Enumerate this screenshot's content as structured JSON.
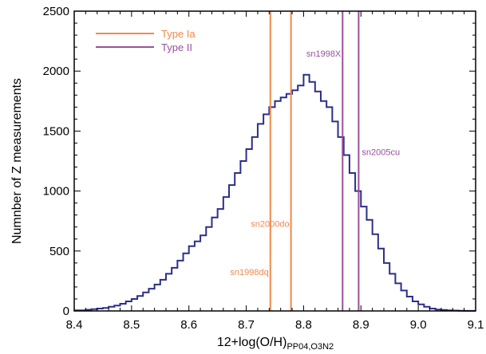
{
  "chart_data": {
    "type": "histogram",
    "xlabel": {
      "main": "12+log(O/H)",
      "subscript": "PP04,O3N2"
    },
    "ylabel": "Numnber of Z measurements",
    "xlim": [
      8.4,
      9.1
    ],
    "ylim": [
      0,
      2500
    ],
    "xticks": [
      "8.4",
      "8.5",
      "8.6",
      "8.7",
      "8.8",
      "8.9",
      "9.0",
      "9.1"
    ],
    "yticks": [
      "0",
      "500",
      "1000",
      "1500",
      "2000",
      "2500"
    ],
    "grid": false,
    "bin_width": 0.01,
    "bin_start": 8.4,
    "histogram_counts": [
      5,
      5,
      10,
      15,
      20,
      25,
      35,
      45,
      60,
      80,
      100,
      125,
      155,
      185,
      220,
      260,
      310,
      360,
      420,
      480,
      540,
      580,
      630,
      700,
      780,
      850,
      950,
      1050,
      1150,
      1250,
      1350,
      1450,
      1560,
      1640,
      1700,
      1750,
      1780,
      1810,
      1840,
      1880,
      1970,
      1910,
      1830,
      1750,
      1700,
      1580,
      1450,
      1300,
      1150,
      1000,
      870,
      760,
      640,
      520,
      400,
      310,
      230,
      170,
      120,
      80,
      55,
      35,
      20,
      12,
      8,
      5,
      3,
      2,
      1,
      1
    ],
    "series_color": "#2b2f8a",
    "legend": {
      "placement": "top-left",
      "entries": [
        {
          "name": "Type Ia",
          "color": "#f08a4b"
        },
        {
          "name": "Type II",
          "color": "#9b4f9b"
        }
      ]
    },
    "supernovae": [
      {
        "name": "sn1998dq",
        "x": 8.742,
        "type": "Type Ia",
        "label_y": 300
      },
      {
        "name": "sn2000do",
        "x": 8.778,
        "type": "Type Ia",
        "label_y": 700
      },
      {
        "name": "sn1998X",
        "x": 8.868,
        "type": "Type II",
        "label_y": 2120
      },
      {
        "name": "sn2005cu",
        "x": 8.896,
        "type": "Type II",
        "label_y": 1300
      }
    ]
  }
}
